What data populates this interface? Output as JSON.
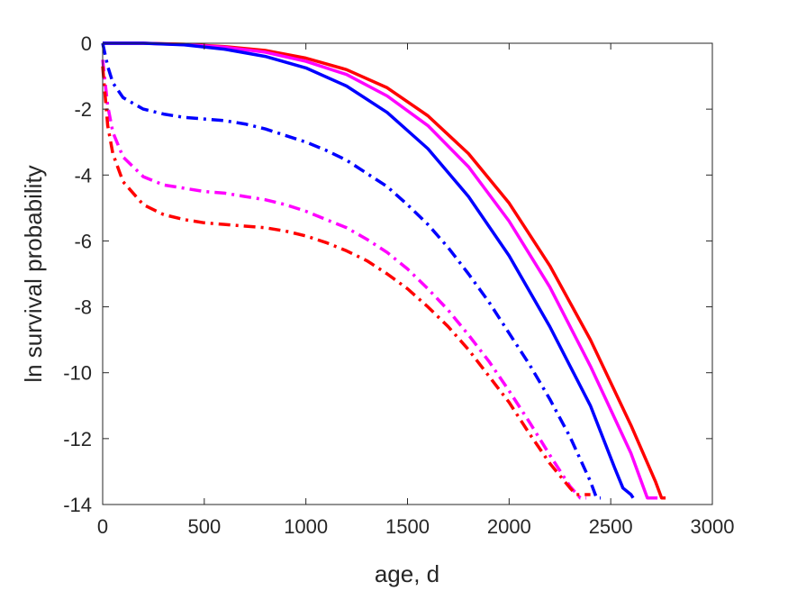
{
  "chart_data": {
    "type": "line",
    "title": "",
    "xlabel": "age, d",
    "ylabel": "ln survival probability",
    "xlim": [
      0,
      3000
    ],
    "ylim": [
      -14,
      0
    ],
    "xticks": [
      0,
      500,
      1000,
      1500,
      2000,
      2500,
      3000
    ],
    "yticks": [
      0,
      -2,
      -4,
      -6,
      -8,
      -10,
      -12,
      -14
    ],
    "xtick_labels": [
      "0",
      "500",
      "1000",
      "1500",
      "2000",
      "2500",
      "3000"
    ],
    "ytick_labels": [
      "0",
      "-2",
      "-4",
      "-6",
      "-8",
      "-10",
      "-12",
      "-14"
    ],
    "grid": false,
    "legend": "none",
    "series": [
      {
        "color": "#ff0000",
        "style": "solid",
        "points": [
          [
            0,
            0
          ],
          [
            200,
            0
          ],
          [
            400,
            -0.03
          ],
          [
            600,
            -0.1
          ],
          [
            800,
            -0.22
          ],
          [
            1000,
            -0.45
          ],
          [
            1200,
            -0.8
          ],
          [
            1400,
            -1.35
          ],
          [
            1600,
            -2.2
          ],
          [
            1800,
            -3.35
          ],
          [
            2000,
            -4.85
          ],
          [
            2200,
            -6.75
          ],
          [
            2400,
            -9.0
          ],
          [
            2600,
            -11.6
          ],
          [
            2720,
            -13.3
          ],
          [
            2750,
            -13.8
          ],
          [
            2770,
            -13.8
          ]
        ]
      },
      {
        "color": "#ff00ff",
        "style": "solid",
        "points": [
          [
            0,
            0
          ],
          [
            200,
            0
          ],
          [
            400,
            -0.04
          ],
          [
            600,
            -0.12
          ],
          [
            800,
            -0.27
          ],
          [
            1000,
            -0.55
          ],
          [
            1200,
            -0.95
          ],
          [
            1400,
            -1.6
          ],
          [
            1600,
            -2.5
          ],
          [
            1800,
            -3.75
          ],
          [
            2000,
            -5.4
          ],
          [
            2200,
            -7.4
          ],
          [
            2400,
            -9.8
          ],
          [
            2600,
            -12.45
          ],
          [
            2680,
            -13.8
          ],
          [
            2730,
            -13.8
          ]
        ]
      },
      {
        "color": "#0000ff",
        "style": "solid",
        "points": [
          [
            0,
            0
          ],
          [
            200,
            0
          ],
          [
            400,
            -0.05
          ],
          [
            600,
            -0.18
          ],
          [
            800,
            -0.4
          ],
          [
            1000,
            -0.75
          ],
          [
            1200,
            -1.3
          ],
          [
            1400,
            -2.1
          ],
          [
            1600,
            -3.2
          ],
          [
            1800,
            -4.65
          ],
          [
            2000,
            -6.45
          ],
          [
            2200,
            -8.6
          ],
          [
            2400,
            -11.0
          ],
          [
            2520,
            -12.9
          ],
          [
            2560,
            -13.5
          ],
          [
            2600,
            -13.7
          ],
          [
            2610,
            -13.8
          ]
        ]
      },
      {
        "color": "#0000ff",
        "style": "dashdot",
        "points": [
          [
            0,
            0
          ],
          [
            25,
            -0.7
          ],
          [
            50,
            -1.2
          ],
          [
            100,
            -1.65
          ],
          [
            200,
            -2.0
          ],
          [
            300,
            -2.15
          ],
          [
            400,
            -2.25
          ],
          [
            500,
            -2.3
          ],
          [
            600,
            -2.35
          ],
          [
            700,
            -2.45
          ],
          [
            800,
            -2.6
          ],
          [
            900,
            -2.8
          ],
          [
            1000,
            -3.0
          ],
          [
            1100,
            -3.25
          ],
          [
            1200,
            -3.55
          ],
          [
            1300,
            -3.95
          ],
          [
            1400,
            -4.35
          ],
          [
            1500,
            -4.9
          ],
          [
            1600,
            -5.5
          ],
          [
            1700,
            -6.2
          ],
          [
            1800,
            -7.0
          ],
          [
            1900,
            -7.85
          ],
          [
            2000,
            -8.8
          ],
          [
            2100,
            -9.75
          ],
          [
            2200,
            -10.8
          ],
          [
            2300,
            -11.95
          ],
          [
            2400,
            -13.3
          ],
          [
            2430,
            -13.8
          ],
          [
            2450,
            -13.8
          ]
        ]
      },
      {
        "color": "#ff00ff",
        "style": "dashdot",
        "points": [
          [
            0,
            -0.5
          ],
          [
            25,
            -1.9
          ],
          [
            50,
            -2.7
          ],
          [
            100,
            -3.45
          ],
          [
            200,
            -4.05
          ],
          [
            300,
            -4.3
          ],
          [
            400,
            -4.4
          ],
          [
            500,
            -4.5
          ],
          [
            600,
            -4.55
          ],
          [
            700,
            -4.65
          ],
          [
            800,
            -4.75
          ],
          [
            900,
            -4.9
          ],
          [
            1000,
            -5.1
          ],
          [
            1100,
            -5.35
          ],
          [
            1200,
            -5.6
          ],
          [
            1300,
            -5.95
          ],
          [
            1400,
            -6.35
          ],
          [
            1500,
            -6.85
          ],
          [
            1600,
            -7.45
          ],
          [
            1700,
            -8.1
          ],
          [
            1800,
            -8.85
          ],
          [
            1900,
            -9.65
          ],
          [
            2000,
            -10.55
          ],
          [
            2100,
            -11.5
          ],
          [
            2200,
            -12.5
          ],
          [
            2300,
            -13.45
          ],
          [
            2350,
            -13.8
          ],
          [
            2380,
            -13.8
          ]
        ]
      },
      {
        "color": "#ff0000",
        "style": "dashdot",
        "points": [
          [
            0,
            -0.7
          ],
          [
            25,
            -2.5
          ],
          [
            50,
            -3.35
          ],
          [
            100,
            -4.2
          ],
          [
            200,
            -4.9
          ],
          [
            300,
            -5.2
          ],
          [
            400,
            -5.35
          ],
          [
            500,
            -5.45
          ],
          [
            600,
            -5.5
          ],
          [
            700,
            -5.55
          ],
          [
            800,
            -5.6
          ],
          [
            900,
            -5.7
          ],
          [
            1000,
            -5.85
          ],
          [
            1100,
            -6.05
          ],
          [
            1200,
            -6.3
          ],
          [
            1300,
            -6.6
          ],
          [
            1400,
            -7.0
          ],
          [
            1500,
            -7.45
          ],
          [
            1600,
            -8.0
          ],
          [
            1700,
            -8.6
          ],
          [
            1800,
            -9.3
          ],
          [
            1900,
            -10.1
          ],
          [
            2000,
            -10.9
          ],
          [
            2100,
            -11.85
          ],
          [
            2200,
            -12.75
          ],
          [
            2300,
            -13.5
          ],
          [
            2330,
            -13.7
          ],
          [
            2400,
            -13.7
          ]
        ]
      }
    ]
  }
}
